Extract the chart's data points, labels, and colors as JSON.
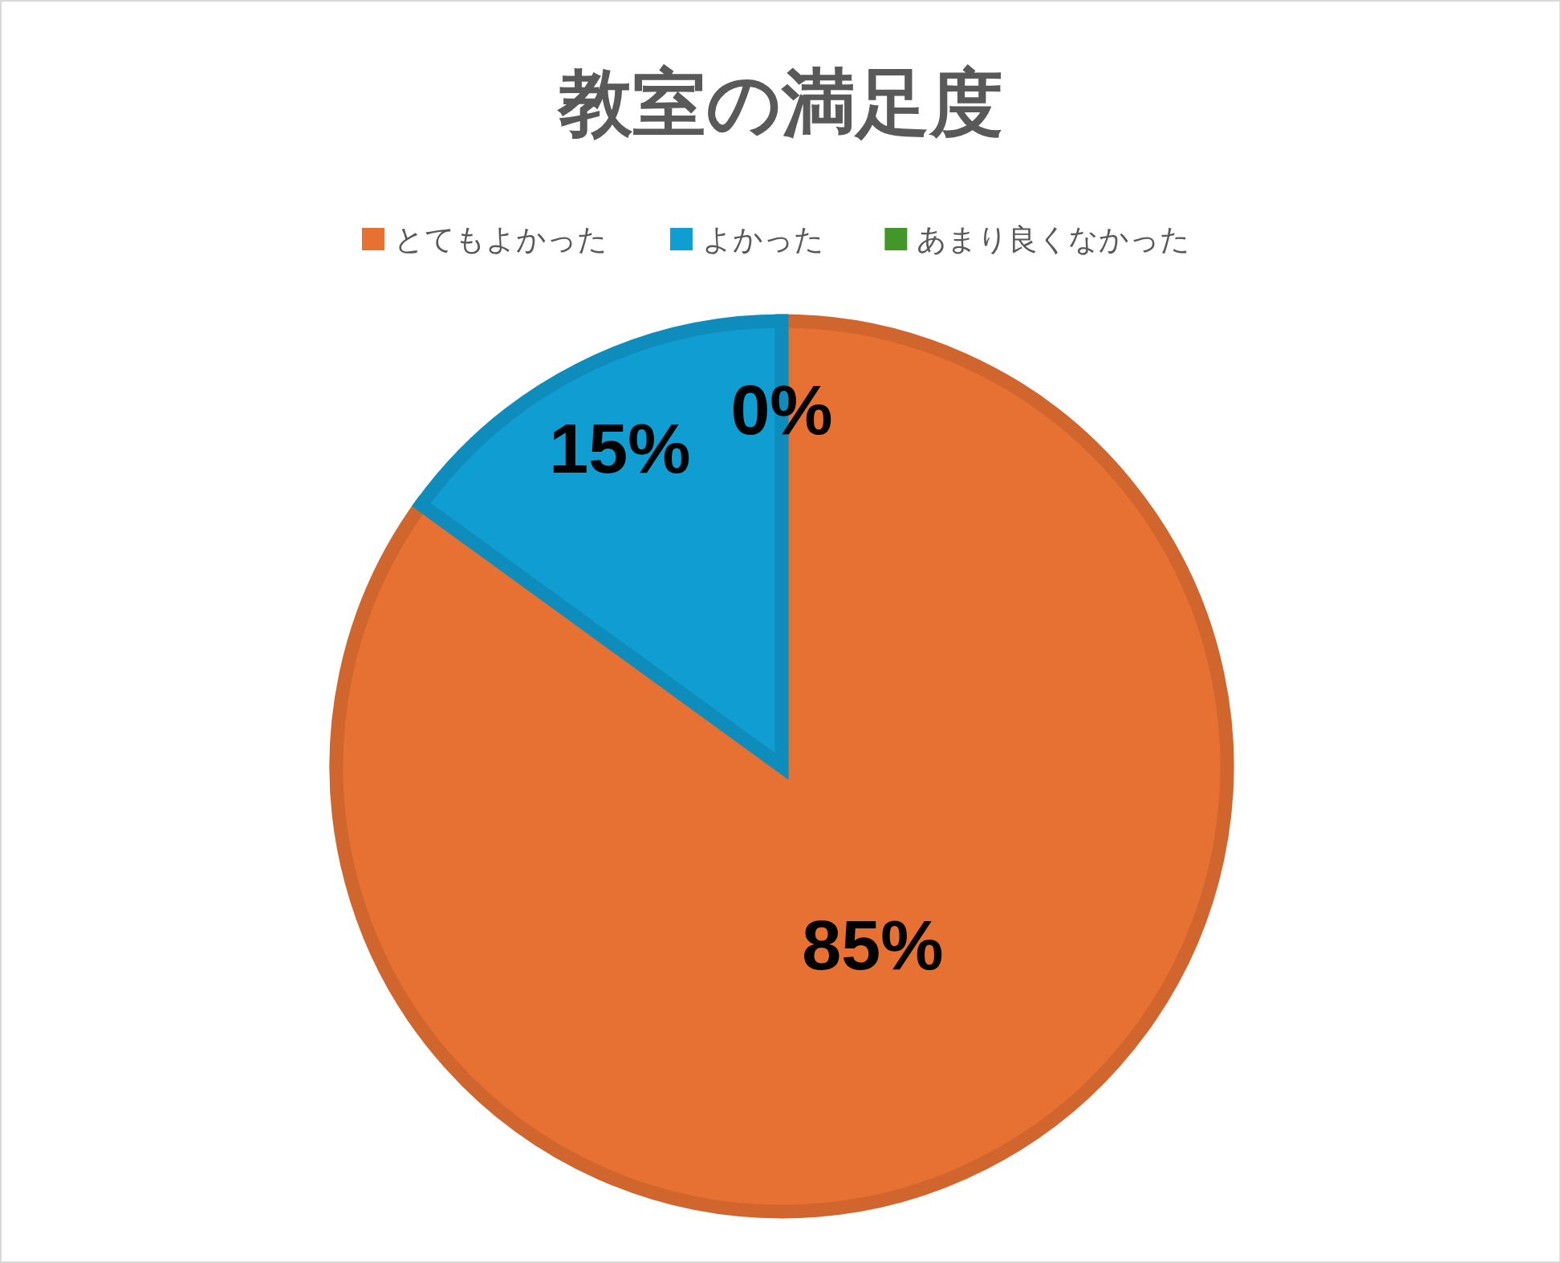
{
  "chart_data": {
    "type": "pie",
    "title": "教室の満足度",
    "categories": [
      "とてもよかった",
      "よかった",
      "あまり良くなかった"
    ],
    "values": [
      85,
      15,
      0
    ],
    "colors": [
      "#e77033",
      "#0f9dd2",
      "#43962a"
    ],
    "value_labels": [
      "85%",
      "15%",
      "0%"
    ],
    "legend": "top"
  }
}
